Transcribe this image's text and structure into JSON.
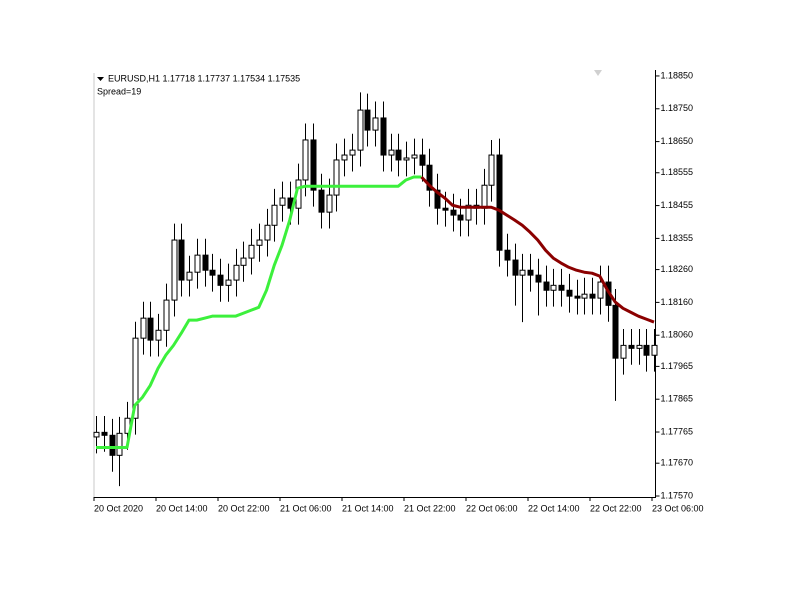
{
  "chart_data": {
    "type": "candlestick",
    "header": "EURUSD,H1  1.17718 1.17737 1.17534 1.17535",
    "subheader": "Spread=19",
    "categories": [
      "20 Oct 2020",
      null,
      null,
      null,
      null,
      null,
      null,
      null,
      "20 Oct 14:00",
      null,
      null,
      null,
      null,
      null,
      null,
      null,
      "20 Oct 22:00",
      null,
      null,
      null,
      null,
      null,
      null,
      null,
      "21 Oct 06:00",
      null,
      null,
      null,
      null,
      null,
      null,
      null,
      "21 Oct 14:00",
      null,
      null,
      null,
      null,
      null,
      null,
      null,
      "21 Oct 22:00",
      null,
      null,
      null,
      null,
      null,
      null,
      null,
      "22 Oct 06:00",
      null,
      null,
      null,
      null,
      null,
      null,
      null,
      "22 Oct 14:00",
      null,
      null,
      null,
      null,
      null,
      null,
      null,
      "22 Oct 22:00",
      null,
      null,
      null,
      null,
      null,
      null,
      null,
      "23 Oct 06:00"
    ],
    "open": [
      1.1775,
      1.17764,
      1.17755,
      1.17694,
      1.17761,
      1.17807,
      1.18051,
      1.18112,
      1.18045,
      1.18075,
      1.18167,
      1.1835,
      1.18228,
      1.18252,
      1.18304,
      1.18258,
      1.18243,
      1.18212,
      1.18228,
      1.18273,
      1.18295,
      1.18334,
      1.1835,
      1.18395,
      1.18456,
      1.18478,
      1.18447,
      1.18533,
      1.18655,
      1.18502,
      1.18435,
      1.18487,
      1.18594,
      1.18609,
      1.18624,
      1.18746,
      1.18685,
      1.18722,
      1.18609,
      1.18624,
      1.18594,
      1.186,
      1.18609,
      1.18578,
      1.18502,
      1.18447,
      1.18441,
      1.18426,
      1.18411,
      1.18456,
      1.18447,
      1.18517,
      1.18609,
      1.18319,
      1.18289,
      1.18243,
      1.18258,
      1.18243,
      1.18222,
      1.18197,
      1.18212,
      1.18197,
      1.18179,
      1.18173,
      1.18185,
      1.18173,
      1.18222,
      1.18151,
      1.1799,
      1.18029,
      1.1802,
      1.18029,
      1.17999
    ],
    "high": [
      1.17814,
      1.17814,
      1.17805,
      1.17811,
      1.17857,
      1.18101,
      1.18162,
      1.18162,
      1.18125,
      1.18217,
      1.184,
      1.184,
      1.18302,
      1.18354,
      1.18354,
      1.18308,
      1.18293,
      1.18278,
      1.18323,
      1.18345,
      1.18384,
      1.184,
      1.18445,
      1.18506,
      1.18528,
      1.18528,
      1.18583,
      1.18705,
      1.18705,
      1.18552,
      1.18537,
      1.18644,
      1.18659,
      1.18674,
      1.188,
      1.18796,
      1.18772,
      1.18772,
      1.18674,
      1.18674,
      1.1865,
      1.18659,
      1.18659,
      1.18628,
      1.18552,
      1.18497,
      1.18491,
      1.18476,
      1.18506,
      1.18506,
      1.18567,
      1.18655,
      1.18659,
      1.18369,
      1.18339,
      1.18308,
      1.18308,
      1.18293,
      1.18272,
      1.18262,
      1.18262,
      1.18247,
      1.18229,
      1.18235,
      1.18235,
      1.18272,
      1.18272,
      1.18201,
      1.18079,
      1.18079,
      1.18079,
      1.18079,
      1.18079
    ],
    "low": [
      1.177,
      1.17705,
      1.17644,
      1.176,
      1.17711,
      1.17757,
      1.18001,
      1.17995,
      1.17995,
      1.18025,
      1.18117,
      1.18178,
      1.18178,
      1.18202,
      1.18208,
      1.18193,
      1.18162,
      1.18162,
      1.18178,
      1.18223,
      1.18245,
      1.18284,
      1.183,
      1.18345,
      1.18406,
      1.18397,
      1.18397,
      1.18483,
      1.18452,
      1.18385,
      1.18385,
      1.18437,
      1.18544,
      1.18559,
      1.18574,
      1.18635,
      1.18635,
      1.18559,
      1.18559,
      1.18544,
      1.18544,
      1.1855,
      1.18528,
      1.18452,
      1.18397,
      1.18391,
      1.18376,
      1.18361,
      1.18361,
      1.18397,
      1.18397,
      1.18467,
      1.18269,
      1.18239,
      1.1815,
      1.181,
      1.18193,
      1.1812,
      1.18147,
      1.18147,
      1.18147,
      1.18129,
      1.18123,
      1.18123,
      1.18123,
      1.18123,
      1.18101,
      1.1786,
      1.1794,
      1.1797,
      1.1797,
      1.17949,
      1.17949
    ],
    "close": [
      1.17764,
      1.17755,
      1.17694,
      1.17761,
      1.17807,
      1.18051,
      1.18112,
      1.18045,
      1.18075,
      1.18167,
      1.1835,
      1.18228,
      1.18252,
      1.18304,
      1.18258,
      1.18243,
      1.18212,
      1.18228,
      1.18273,
      1.18295,
      1.18334,
      1.1835,
      1.18395,
      1.18456,
      1.18478,
      1.18447,
      1.18533,
      1.18655,
      1.18502,
      1.18435,
      1.18487,
      1.18594,
      1.18609,
      1.18624,
      1.18746,
      1.18685,
      1.18722,
      1.18609,
      1.18624,
      1.18594,
      1.186,
      1.18609,
      1.18578,
      1.18502,
      1.18447,
      1.18441,
      1.18426,
      1.18411,
      1.18456,
      1.18447,
      1.18517,
      1.18609,
      1.18319,
      1.18289,
      1.18243,
      1.18258,
      1.18243,
      1.18222,
      1.18197,
      1.18212,
      1.18197,
      1.18179,
      1.18173,
      1.18185,
      1.18173,
      1.18222,
      1.18151,
      1.1799,
      1.18029,
      1.1802,
      1.18029,
      1.17999,
      1.18029
    ],
    "up_color": "#ffffff",
    "down_color": "#000000",
    "wick_color": "#000000",
    "series": [
      {
        "color": "#3cf03c",
        "values": [
          1.17718,
          1.17718,
          1.17718,
          1.17718,
          1.17718,
          1.17846,
          1.17871,
          1.17907,
          1.17959,
          1.17999,
          1.18029,
          1.18066,
          1.18106,
          1.18106,
          1.18112,
          1.18118,
          1.18118,
          1.18118,
          1.18118,
          1.18127,
          1.18136,
          1.18145,
          1.18197,
          1.18273,
          1.18334,
          1.18411,
          1.18508,
          1.18514,
          1.18514,
          1.18514,
          1.18514,
          1.18514,
          1.18514,
          1.18514,
          1.18514,
          1.18514,
          1.18514,
          1.18514,
          1.18514,
          1.18514,
          1.18533,
          1.18542,
          1.18542,
          null,
          null,
          null,
          null,
          null,
          null,
          null,
          null,
          null,
          null,
          null,
          null,
          null,
          null,
          null,
          null,
          null,
          null,
          null,
          null,
          null,
          null,
          null,
          null,
          null,
          null,
          null,
          null,
          null,
          null
        ]
      },
      {
        "color": "#8b0000",
        "values": [
          null,
          null,
          null,
          null,
          null,
          null,
          null,
          null,
          null,
          null,
          null,
          null,
          null,
          null,
          null,
          null,
          null,
          null,
          null,
          null,
          null,
          null,
          null,
          null,
          null,
          null,
          null,
          null,
          null,
          null,
          null,
          null,
          null,
          null,
          null,
          null,
          null,
          null,
          null,
          null,
          null,
          null,
          1.18542,
          1.18517,
          1.18496,
          1.18478,
          1.18456,
          1.1845,
          1.1845,
          1.1845,
          1.1845,
          1.1845,
          1.18441,
          1.18426,
          1.18411,
          1.18395,
          1.18374,
          1.1835,
          1.18319,
          1.18295,
          1.1828,
          1.18267,
          1.18258,
          1.18252,
          1.18249,
          1.1824,
          1.18197,
          1.18161,
          1.18142,
          1.1813,
          1.18118,
          1.18109,
          1.181
        ]
      }
    ],
    "ylim": [
      1.17567,
      1.18859
    ],
    "yticks": [
      {
        "value": 1.1885,
        "label": "1.18850"
      },
      {
        "value": 1.1875,
        "label": "1.18750"
      },
      {
        "value": 1.1865,
        "label": "1.18650"
      },
      1.18555,
      1.18455,
      1.18355,
      {
        "value": 1.1826,
        "label": "1.18260"
      },
      {
        "value": 1.1816,
        "label": "1.18160"
      },
      {
        "value": 1.1806,
        "label": "1.18060"
      },
      1.17965,
      1.17865,
      1.17765,
      {
        "value": 1.1767,
        "label": "1.17670"
      },
      {
        "value": 1.1757,
        "label": "1.17570"
      }
    ],
    "grid": false
  }
}
